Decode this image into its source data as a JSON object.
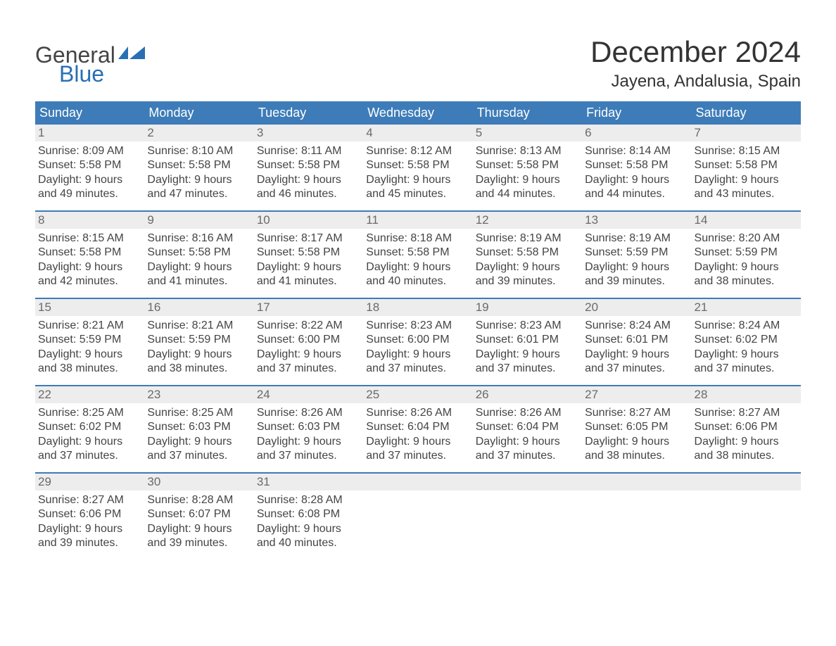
{
  "logo": {
    "general": "General",
    "blue": "Blue"
  },
  "title": "December 2024",
  "location": "Jayena, Andalusia, Spain",
  "colors": {
    "header_bg": "#3d7cb8",
    "header_text": "#ffffff",
    "daynum_bg": "#ededed",
    "daynum_text": "#6a6a6a",
    "body_text": "#444444",
    "rule": "#3d7cb8",
    "logo_blue": "#286fb4",
    "logo_gray": "#444444"
  },
  "days_of_week": [
    "Sunday",
    "Monday",
    "Tuesday",
    "Wednesday",
    "Thursday",
    "Friday",
    "Saturday"
  ],
  "weeks": [
    [
      {
        "n": "1",
        "sunrise": "Sunrise: 8:09 AM",
        "sunset": "Sunset: 5:58 PM",
        "d1": "Daylight: 9 hours",
        "d2": "and 49 minutes."
      },
      {
        "n": "2",
        "sunrise": "Sunrise: 8:10 AM",
        "sunset": "Sunset: 5:58 PM",
        "d1": "Daylight: 9 hours",
        "d2": "and 47 minutes."
      },
      {
        "n": "3",
        "sunrise": "Sunrise: 8:11 AM",
        "sunset": "Sunset: 5:58 PM",
        "d1": "Daylight: 9 hours",
        "d2": "and 46 minutes."
      },
      {
        "n": "4",
        "sunrise": "Sunrise: 8:12 AM",
        "sunset": "Sunset: 5:58 PM",
        "d1": "Daylight: 9 hours",
        "d2": "and 45 minutes."
      },
      {
        "n": "5",
        "sunrise": "Sunrise: 8:13 AM",
        "sunset": "Sunset: 5:58 PM",
        "d1": "Daylight: 9 hours",
        "d2": "and 44 minutes."
      },
      {
        "n": "6",
        "sunrise": "Sunrise: 8:14 AM",
        "sunset": "Sunset: 5:58 PM",
        "d1": "Daylight: 9 hours",
        "d2": "and 44 minutes."
      },
      {
        "n": "7",
        "sunrise": "Sunrise: 8:15 AM",
        "sunset": "Sunset: 5:58 PM",
        "d1": "Daylight: 9 hours",
        "d2": "and 43 minutes."
      }
    ],
    [
      {
        "n": "8",
        "sunrise": "Sunrise: 8:15 AM",
        "sunset": "Sunset: 5:58 PM",
        "d1": "Daylight: 9 hours",
        "d2": "and 42 minutes."
      },
      {
        "n": "9",
        "sunrise": "Sunrise: 8:16 AM",
        "sunset": "Sunset: 5:58 PM",
        "d1": "Daylight: 9 hours",
        "d2": "and 41 minutes."
      },
      {
        "n": "10",
        "sunrise": "Sunrise: 8:17 AM",
        "sunset": "Sunset: 5:58 PM",
        "d1": "Daylight: 9 hours",
        "d2": "and 41 minutes."
      },
      {
        "n": "11",
        "sunrise": "Sunrise: 8:18 AM",
        "sunset": "Sunset: 5:58 PM",
        "d1": "Daylight: 9 hours",
        "d2": "and 40 minutes."
      },
      {
        "n": "12",
        "sunrise": "Sunrise: 8:19 AM",
        "sunset": "Sunset: 5:58 PM",
        "d1": "Daylight: 9 hours",
        "d2": "and 39 minutes."
      },
      {
        "n": "13",
        "sunrise": "Sunrise: 8:19 AM",
        "sunset": "Sunset: 5:59 PM",
        "d1": "Daylight: 9 hours",
        "d2": "and 39 minutes."
      },
      {
        "n": "14",
        "sunrise": "Sunrise: 8:20 AM",
        "sunset": "Sunset: 5:59 PM",
        "d1": "Daylight: 9 hours",
        "d2": "and 38 minutes."
      }
    ],
    [
      {
        "n": "15",
        "sunrise": "Sunrise: 8:21 AM",
        "sunset": "Sunset: 5:59 PM",
        "d1": "Daylight: 9 hours",
        "d2": "and 38 minutes."
      },
      {
        "n": "16",
        "sunrise": "Sunrise: 8:21 AM",
        "sunset": "Sunset: 5:59 PM",
        "d1": "Daylight: 9 hours",
        "d2": "and 38 minutes."
      },
      {
        "n": "17",
        "sunrise": "Sunrise: 8:22 AM",
        "sunset": "Sunset: 6:00 PM",
        "d1": "Daylight: 9 hours",
        "d2": "and 37 minutes."
      },
      {
        "n": "18",
        "sunrise": "Sunrise: 8:23 AM",
        "sunset": "Sunset: 6:00 PM",
        "d1": "Daylight: 9 hours",
        "d2": "and 37 minutes."
      },
      {
        "n": "19",
        "sunrise": "Sunrise: 8:23 AM",
        "sunset": "Sunset: 6:01 PM",
        "d1": "Daylight: 9 hours",
        "d2": "and 37 minutes."
      },
      {
        "n": "20",
        "sunrise": "Sunrise: 8:24 AM",
        "sunset": "Sunset: 6:01 PM",
        "d1": "Daylight: 9 hours",
        "d2": "and 37 minutes."
      },
      {
        "n": "21",
        "sunrise": "Sunrise: 8:24 AM",
        "sunset": "Sunset: 6:02 PM",
        "d1": "Daylight: 9 hours",
        "d2": "and 37 minutes."
      }
    ],
    [
      {
        "n": "22",
        "sunrise": "Sunrise: 8:25 AM",
        "sunset": "Sunset: 6:02 PM",
        "d1": "Daylight: 9 hours",
        "d2": "and 37 minutes."
      },
      {
        "n": "23",
        "sunrise": "Sunrise: 8:25 AM",
        "sunset": "Sunset: 6:03 PM",
        "d1": "Daylight: 9 hours",
        "d2": "and 37 minutes."
      },
      {
        "n": "24",
        "sunrise": "Sunrise: 8:26 AM",
        "sunset": "Sunset: 6:03 PM",
        "d1": "Daylight: 9 hours",
        "d2": "and 37 minutes."
      },
      {
        "n": "25",
        "sunrise": "Sunrise: 8:26 AM",
        "sunset": "Sunset: 6:04 PM",
        "d1": "Daylight: 9 hours",
        "d2": "and 37 minutes."
      },
      {
        "n": "26",
        "sunrise": "Sunrise: 8:26 AM",
        "sunset": "Sunset: 6:04 PM",
        "d1": "Daylight: 9 hours",
        "d2": "and 37 minutes."
      },
      {
        "n": "27",
        "sunrise": "Sunrise: 8:27 AM",
        "sunset": "Sunset: 6:05 PM",
        "d1": "Daylight: 9 hours",
        "d2": "and 38 minutes."
      },
      {
        "n": "28",
        "sunrise": "Sunrise: 8:27 AM",
        "sunset": "Sunset: 6:06 PM",
        "d1": "Daylight: 9 hours",
        "d2": "and 38 minutes."
      }
    ],
    [
      {
        "n": "29",
        "sunrise": "Sunrise: 8:27 AM",
        "sunset": "Sunset: 6:06 PM",
        "d1": "Daylight: 9 hours",
        "d2": "and 39 minutes."
      },
      {
        "n": "30",
        "sunrise": "Sunrise: 8:28 AM",
        "sunset": "Sunset: 6:07 PM",
        "d1": "Daylight: 9 hours",
        "d2": "and 39 minutes."
      },
      {
        "n": "31",
        "sunrise": "Sunrise: 8:28 AM",
        "sunset": "Sunset: 6:08 PM",
        "d1": "Daylight: 9 hours",
        "d2": "and 40 minutes."
      },
      {
        "empty": true
      },
      {
        "empty": true
      },
      {
        "empty": true
      },
      {
        "empty": true
      }
    ]
  ]
}
